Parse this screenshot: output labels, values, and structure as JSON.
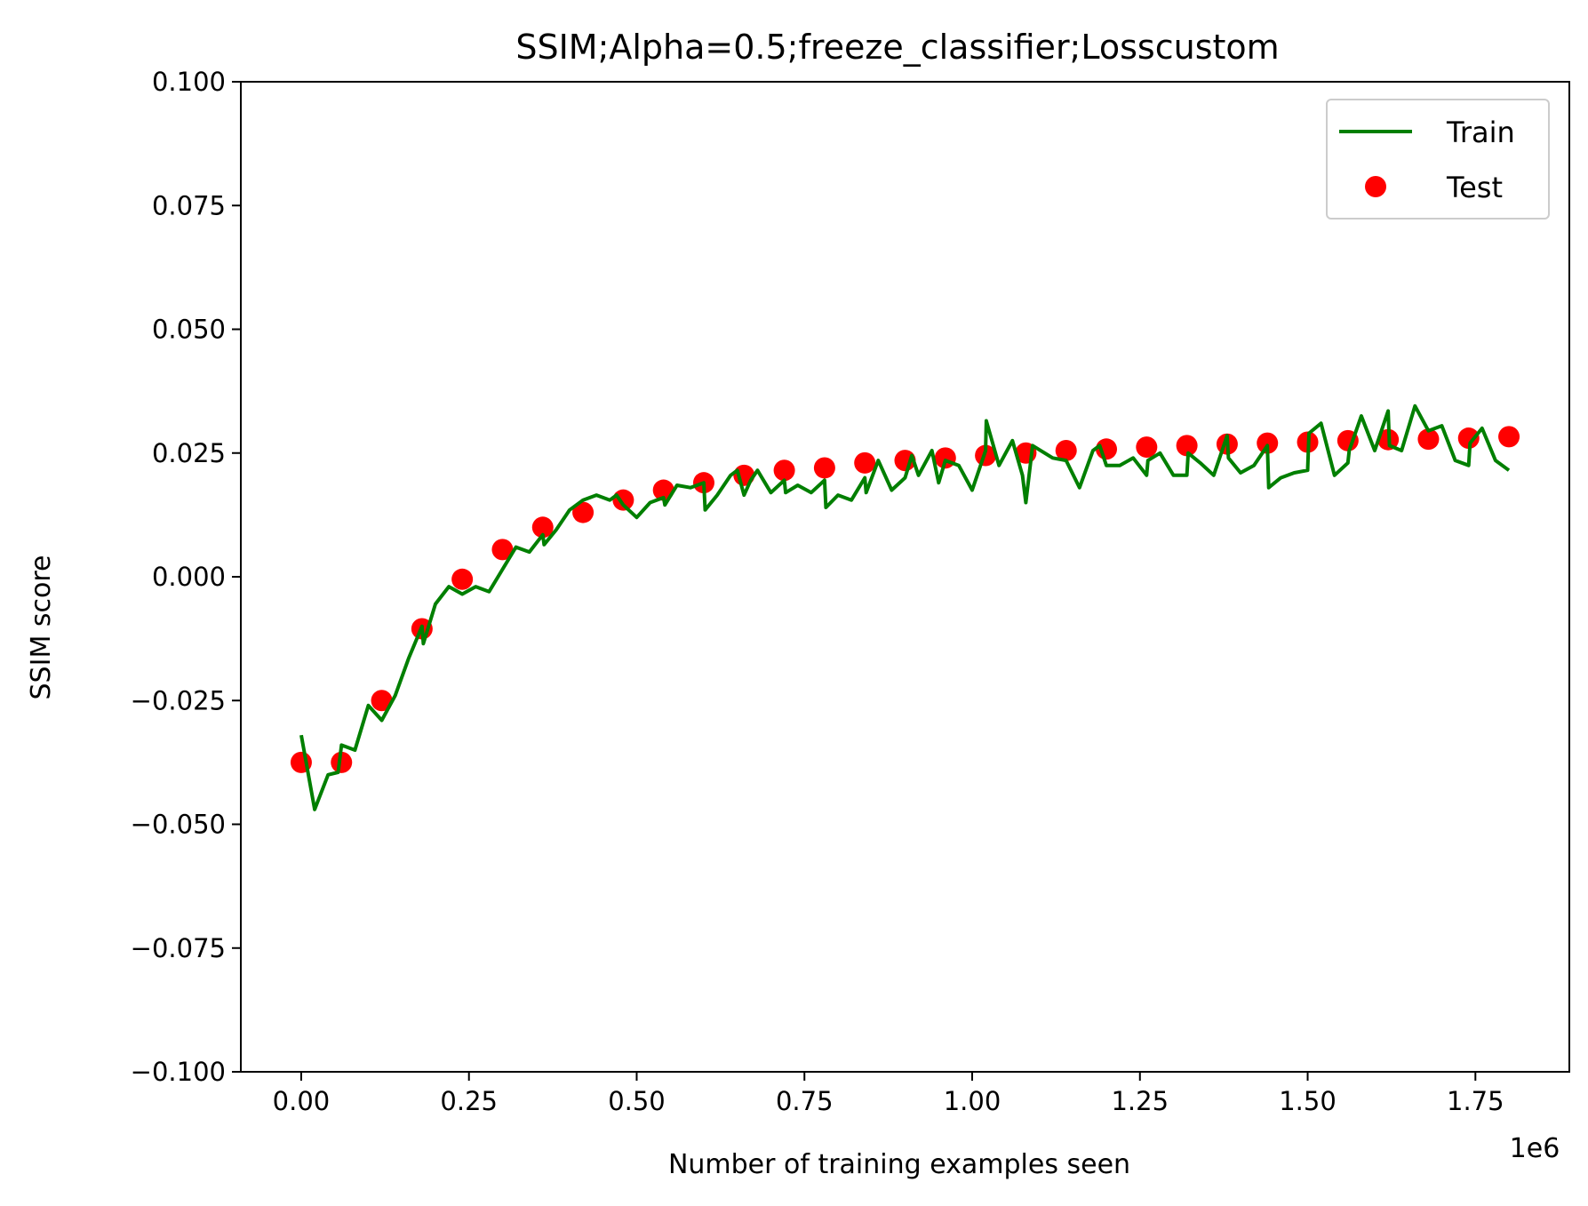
{
  "chart_data": {
    "type": "line",
    "title": "SSIM;Alpha=0.5;freeze_classifier;Losscustom",
    "xlabel": "Number of training examples seen",
    "ylabel": "SSIM score",
    "x_offset_label": "1e6",
    "xlim": [
      -0.09,
      1.89
    ],
    "ylim": [
      -0.1,
      0.1
    ],
    "x_ticks": [
      0.0,
      0.25,
      0.5,
      0.75,
      1.0,
      1.25,
      1.5,
      1.75
    ],
    "x_tick_labels": [
      "0.00",
      "0.25",
      "0.50",
      "0.75",
      "1.00",
      "1.25",
      "1.50",
      "1.75"
    ],
    "y_ticks": [
      -0.1,
      -0.075,
      -0.05,
      -0.025,
      0.0,
      0.025,
      0.05,
      0.075,
      0.1
    ],
    "y_tick_labels": [
      "−0.100",
      "−0.075",
      "−0.050",
      "−0.025",
      "0.000",
      "0.025",
      "0.050",
      "0.075",
      "0.100"
    ],
    "grid": false,
    "legend_position": "top-right",
    "series": [
      {
        "name": "Train",
        "kind": "line",
        "color": "#007f00",
        "points": [
          [
            0.0,
            -0.032
          ],
          [
            0.02,
            -0.047
          ],
          [
            0.04,
            -0.04
          ],
          [
            0.055,
            -0.0395
          ],
          [
            0.06,
            -0.034
          ],
          [
            0.08,
            -0.035
          ],
          [
            0.1,
            -0.026
          ],
          [
            0.12,
            -0.029
          ],
          [
            0.14,
            -0.024
          ],
          [
            0.16,
            -0.0165
          ],
          [
            0.18,
            -0.01
          ],
          [
            0.182,
            -0.0135
          ],
          [
            0.2,
            -0.0055
          ],
          [
            0.22,
            -0.002
          ],
          [
            0.24,
            -0.0035
          ],
          [
            0.26,
            -0.002
          ],
          [
            0.28,
            -0.003
          ],
          [
            0.3,
            0.0015
          ],
          [
            0.32,
            0.006
          ],
          [
            0.34,
            0.005
          ],
          [
            0.36,
            0.0085
          ],
          [
            0.362,
            0.0065
          ],
          [
            0.38,
            0.0095
          ],
          [
            0.4,
            0.0135
          ],
          [
            0.42,
            0.0155
          ],
          [
            0.44,
            0.0165
          ],
          [
            0.46,
            0.0155
          ],
          [
            0.47,
            0.0165
          ],
          [
            0.48,
            0.0145
          ],
          [
            0.5,
            0.012
          ],
          [
            0.52,
            0.015
          ],
          [
            0.54,
            0.016
          ],
          [
            0.542,
            0.0145
          ],
          [
            0.56,
            0.0185
          ],
          [
            0.58,
            0.018
          ],
          [
            0.6,
            0.019
          ],
          [
            0.602,
            0.0135
          ],
          [
            0.62,
            0.0165
          ],
          [
            0.64,
            0.0205
          ],
          [
            0.65,
            0.0215
          ],
          [
            0.66,
            0.0165
          ],
          [
            0.67,
            0.0195
          ],
          [
            0.68,
            0.0215
          ],
          [
            0.7,
            0.017
          ],
          [
            0.72,
            0.0195
          ],
          [
            0.722,
            0.017
          ],
          [
            0.74,
            0.0185
          ],
          [
            0.76,
            0.017
          ],
          [
            0.78,
            0.0195
          ],
          [
            0.782,
            0.014
          ],
          [
            0.8,
            0.0165
          ],
          [
            0.82,
            0.0155
          ],
          [
            0.84,
            0.02
          ],
          [
            0.842,
            0.017
          ],
          [
            0.86,
            0.0235
          ],
          [
            0.88,
            0.0175
          ],
          [
            0.9,
            0.02
          ],
          [
            0.91,
            0.0245
          ],
          [
            0.92,
            0.0205
          ],
          [
            0.94,
            0.0255
          ],
          [
            0.95,
            0.019
          ],
          [
            0.96,
            0.0235
          ],
          [
            0.98,
            0.0225
          ],
          [
            1.0,
            0.0175
          ],
          [
            1.02,
            0.0255
          ],
          [
            1.021,
            0.0315
          ],
          [
            1.04,
            0.0225
          ],
          [
            1.06,
            0.0275
          ],
          [
            1.075,
            0.0205
          ],
          [
            1.08,
            0.015
          ],
          [
            1.09,
            0.0265
          ],
          [
            1.12,
            0.024
          ],
          [
            1.14,
            0.0235
          ],
          [
            1.16,
            0.018
          ],
          [
            1.18,
            0.0255
          ],
          [
            1.19,
            0.0265
          ],
          [
            1.2,
            0.0225
          ],
          [
            1.22,
            0.0225
          ],
          [
            1.24,
            0.024
          ],
          [
            1.26,
            0.0205
          ],
          [
            1.262,
            0.0235
          ],
          [
            1.28,
            0.025
          ],
          [
            1.3,
            0.0205
          ],
          [
            1.32,
            0.0205
          ],
          [
            1.322,
            0.025
          ],
          [
            1.34,
            0.023
          ],
          [
            1.36,
            0.0205
          ],
          [
            1.38,
            0.0285
          ],
          [
            1.382,
            0.024
          ],
          [
            1.4,
            0.021
          ],
          [
            1.42,
            0.0225
          ],
          [
            1.44,
            0.0265
          ],
          [
            1.442,
            0.018
          ],
          [
            1.46,
            0.02
          ],
          [
            1.48,
            0.021
          ],
          [
            1.5,
            0.0215
          ],
          [
            1.502,
            0.029
          ],
          [
            1.52,
            0.031
          ],
          [
            1.54,
            0.0205
          ],
          [
            1.56,
            0.023
          ],
          [
            1.562,
            0.0255
          ],
          [
            1.58,
            0.0325
          ],
          [
            1.6,
            0.0255
          ],
          [
            1.62,
            0.0335
          ],
          [
            1.622,
            0.0265
          ],
          [
            1.64,
            0.0255
          ],
          [
            1.66,
            0.0345
          ],
          [
            1.68,
            0.0295
          ],
          [
            1.7,
            0.0305
          ],
          [
            1.72,
            0.0235
          ],
          [
            1.74,
            0.0225
          ],
          [
            1.742,
            0.027
          ],
          [
            1.76,
            0.03
          ],
          [
            1.78,
            0.0235
          ],
          [
            1.8,
            0.0215
          ]
        ]
      },
      {
        "name": "Test",
        "kind": "scatter",
        "color": "#ff0000",
        "points": [
          [
            0.0,
            -0.0375
          ],
          [
            0.06,
            -0.0375
          ],
          [
            0.12,
            -0.025
          ],
          [
            0.18,
            -0.0105
          ],
          [
            0.24,
            -0.0005
          ],
          [
            0.3,
            0.0055
          ],
          [
            0.36,
            0.01
          ],
          [
            0.42,
            0.013
          ],
          [
            0.48,
            0.0155
          ],
          [
            0.54,
            0.0175
          ],
          [
            0.6,
            0.019
          ],
          [
            0.66,
            0.0205
          ],
          [
            0.72,
            0.0215
          ],
          [
            0.78,
            0.022
          ],
          [
            0.84,
            0.023
          ],
          [
            0.9,
            0.0235
          ],
          [
            0.96,
            0.024
          ],
          [
            1.02,
            0.0245
          ],
          [
            1.08,
            0.025
          ],
          [
            1.14,
            0.0255
          ],
          [
            1.2,
            0.0258
          ],
          [
            1.26,
            0.0262
          ],
          [
            1.32,
            0.0265
          ],
          [
            1.38,
            0.0268
          ],
          [
            1.44,
            0.027
          ],
          [
            1.5,
            0.0272
          ],
          [
            1.56,
            0.0275
          ],
          [
            1.62,
            0.0277
          ],
          [
            1.68,
            0.0278
          ],
          [
            1.74,
            0.028
          ],
          [
            1.8,
            0.0283
          ]
        ]
      }
    ]
  }
}
